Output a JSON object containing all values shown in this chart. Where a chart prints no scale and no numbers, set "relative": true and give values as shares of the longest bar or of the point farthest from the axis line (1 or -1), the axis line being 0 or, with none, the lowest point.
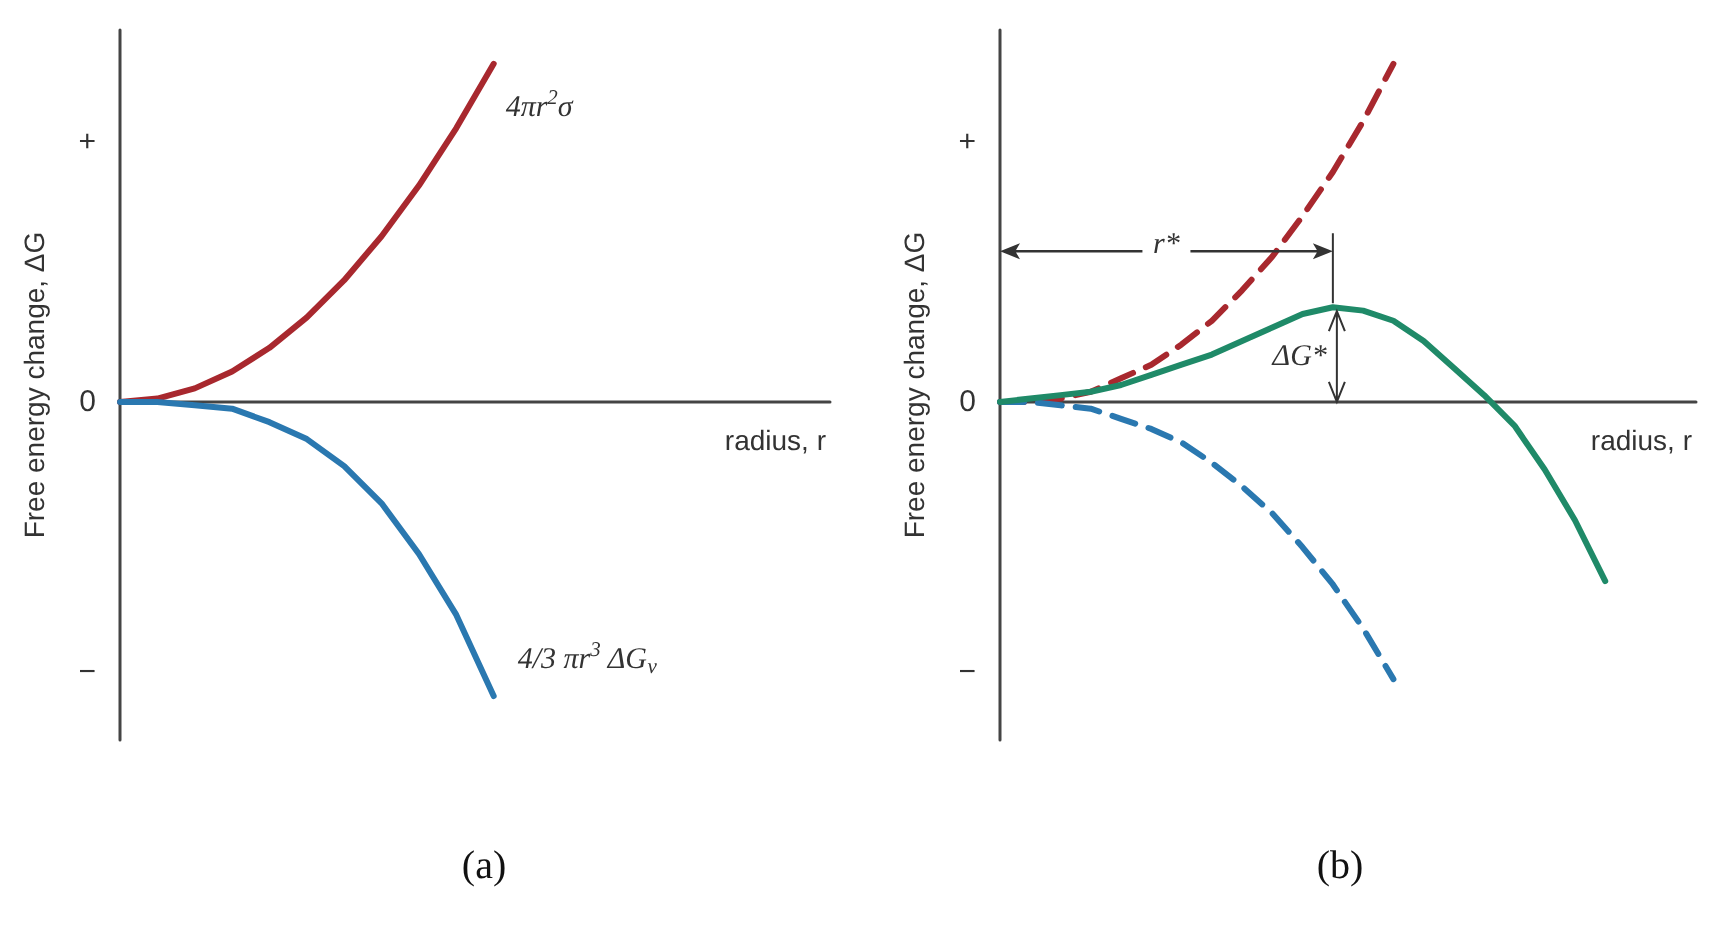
{
  "chart_data": [
    {
      "type": "line",
      "title": "(a)",
      "xlabel": "radius, r",
      "ylabel": "Free energy change, ΔG",
      "relative": true,
      "marker": "none",
      "legend": false,
      "grid": false,
      "categories": [
        null,
        null,
        null,
        null,
        null,
        null,
        null,
        null,
        null,
        null,
        null,
        null,
        null,
        null,
        null,
        null,
        null,
        null,
        null,
        null
      ],
      "annotations": [
        "+",
        "0",
        "−"
      ],
      "series": [
        {
          "name": "4πr$^{2}$σ",
          "color": "#a8282e",
          "line_style": "solid",
          "values": [
            0,
            0.01,
            0.04,
            0.09,
            0.16,
            0.25,
            0.36,
            0.49,
            0.64,
            0.81,
            1,
            null,
            null,
            null,
            null,
            null,
            null,
            null,
            null,
            null
          ]
        },
        {
          "name": "4/3 πr$^{3}$ ΔG$_{v}$",
          "color": "#2a78b0",
          "line_style": "solid",
          "values": [
            0,
            0,
            -0.01,
            -0.02,
            -0.06,
            -0.11,
            -0.19,
            -0.3,
            -0.45,
            -0.63,
            -0.87,
            null,
            null,
            null,
            null,
            null,
            null,
            null,
            null,
            null
          ]
        }
      ]
    },
    {
      "type": "line",
      "title": "(b)",
      "xlabel": "radius, r",
      "ylabel": "Free energy change, ΔG",
      "relative": true,
      "marker": "none",
      "legend": false,
      "grid": false,
      "categories": [
        null,
        null,
        null,
        null,
        null,
        null,
        null,
        null,
        null,
        null,
        null,
        null,
        null,
        null,
        null,
        null,
        null,
        null,
        null,
        null,
        null,
        null,
        null,
        null
      ],
      "annotations": [
        "+",
        "0",
        "−",
        "r*",
        "ΔG*"
      ],
      "series": [
        {
          "color": "#a8282e",
          "line_style": "dashed",
          "values": [
            0,
            0,
            0.01,
            0.03,
            0.07,
            0.11,
            0.17,
            0.24,
            0.33,
            0.43,
            0.55,
            0.68,
            0.83,
            1,
            null,
            null,
            null,
            null,
            null,
            null,
            null,
            null,
            null,
            null
          ]
        },
        {
          "color": "#2a78b0",
          "line_style": "dashed",
          "values": [
            0,
            0,
            -0.01,
            -0.02,
            -0.05,
            -0.08,
            -0.12,
            -0.18,
            -0.25,
            -0.33,
            -0.43,
            -0.54,
            -0.67,
            -0.82,
            null,
            null,
            null,
            null,
            null,
            null,
            null,
            null,
            null,
            null
          ]
        },
        {
          "color": "#1f8a68",
          "line_style": "solid",
          "values": [
            0,
            0.01,
            0.02,
            0.03,
            0.05,
            0.08,
            0.11,
            0.14,
            0.18,
            0.22,
            0.26,
            0.28,
            0.27,
            0.24,
            0.18,
            0.1,
            0.02,
            -0.07,
            -0.2,
            -0.35,
            -0.53,
            null,
            null,
            null
          ]
        }
      ]
    }
  ]
}
